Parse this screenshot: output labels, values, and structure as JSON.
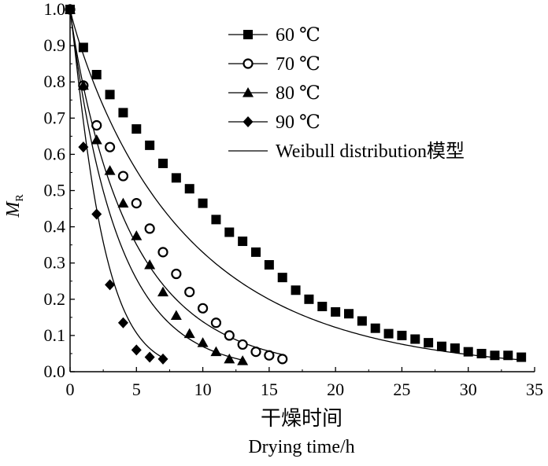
{
  "chart_data": {
    "type": "scatter",
    "title": "",
    "xlabel_cn": "干燥时间",
    "xlabel": "Drying time/h",
    "ylabel_main": "M",
    "ylabel_sub": "R",
    "xlim": [
      0,
      35
    ],
    "ylim": [
      0,
      1.0
    ],
    "x_ticks": [
      0,
      5,
      10,
      15,
      20,
      25,
      30,
      35
    ],
    "x_tick_labels": [
      "0",
      "5",
      "10",
      "15",
      "20",
      "25",
      "30",
      "35"
    ],
    "y_ticks": [
      0,
      0.1,
      0.2,
      0.3,
      0.4,
      0.5,
      0.6,
      0.7,
      0.8,
      0.9,
      1.0
    ],
    "y_tick_labels": [
      "0.0",
      "0.1",
      "0.2",
      "0.3",
      "0.4",
      "0.5",
      "0.6",
      "0.7",
      "0.8",
      "0.9",
      "1.0"
    ],
    "legend_position": "top-right",
    "legend": [
      {
        "label": "60 ℃",
        "marker": "square"
      },
      {
        "label": "70 ℃",
        "marker": "circle"
      },
      {
        "label": "80 ℃",
        "marker": "triangle"
      },
      {
        "label": "90 ℃",
        "marker": "diamond"
      },
      {
        "label": "Weibull distribution模型",
        "marker": "line"
      }
    ],
    "series": [
      {
        "name": "60 ℃",
        "marker": "square",
        "x": [
          0,
          1,
          2,
          3,
          4,
          5,
          6,
          7,
          8,
          9,
          10,
          11,
          12,
          13,
          14,
          15,
          16,
          17,
          18,
          19,
          20,
          21,
          22,
          23,
          24,
          25,
          26,
          27,
          28,
          29,
          30,
          31,
          32,
          33,
          34
        ],
        "y": [
          1.0,
          0.895,
          0.82,
          0.765,
          0.715,
          0.67,
          0.625,
          0.575,
          0.535,
          0.505,
          0.465,
          0.42,
          0.385,
          0.36,
          0.33,
          0.295,
          0.26,
          0.225,
          0.2,
          0.18,
          0.165,
          0.16,
          0.14,
          0.12,
          0.105,
          0.1,
          0.09,
          0.08,
          0.07,
          0.065,
          0.055,
          0.05,
          0.045,
          0.045,
          0.04
        ],
        "fit": {
          "a": 0.112,
          "n": 0.92
        }
      },
      {
        "name": "70 ℃",
        "marker": "circle",
        "x": [
          0,
          1,
          2,
          3,
          4,
          5,
          6,
          7,
          8,
          9,
          10,
          11,
          12,
          13,
          14,
          15,
          16
        ],
        "y": [
          1.0,
          0.79,
          0.68,
          0.62,
          0.54,
          0.465,
          0.395,
          0.33,
          0.27,
          0.22,
          0.175,
          0.135,
          0.1,
          0.075,
          0.055,
          0.045,
          0.035
        ],
        "fit": {
          "a": 0.21,
          "n": 0.92
        }
      },
      {
        "name": "80 ℃",
        "marker": "triangle",
        "x": [
          0,
          1,
          2,
          3,
          4,
          5,
          6,
          7,
          8,
          9,
          10,
          11,
          12,
          13
        ],
        "y": [
          1.0,
          0.79,
          0.64,
          0.555,
          0.465,
          0.375,
          0.295,
          0.22,
          0.155,
          0.105,
          0.08,
          0.055,
          0.035,
          0.03
        ],
        "fit": {
          "a": 0.275,
          "n": 0.97
        }
      },
      {
        "name": "90 ℃",
        "marker": "diamond",
        "x": [
          0,
          1,
          2,
          3,
          4,
          5,
          6,
          7
        ],
        "y": [
          1.0,
          0.62,
          0.435,
          0.24,
          0.135,
          0.06,
          0.04,
          0.035
        ],
        "fit": {
          "a": 0.41,
          "n": 1.12
        }
      }
    ]
  }
}
